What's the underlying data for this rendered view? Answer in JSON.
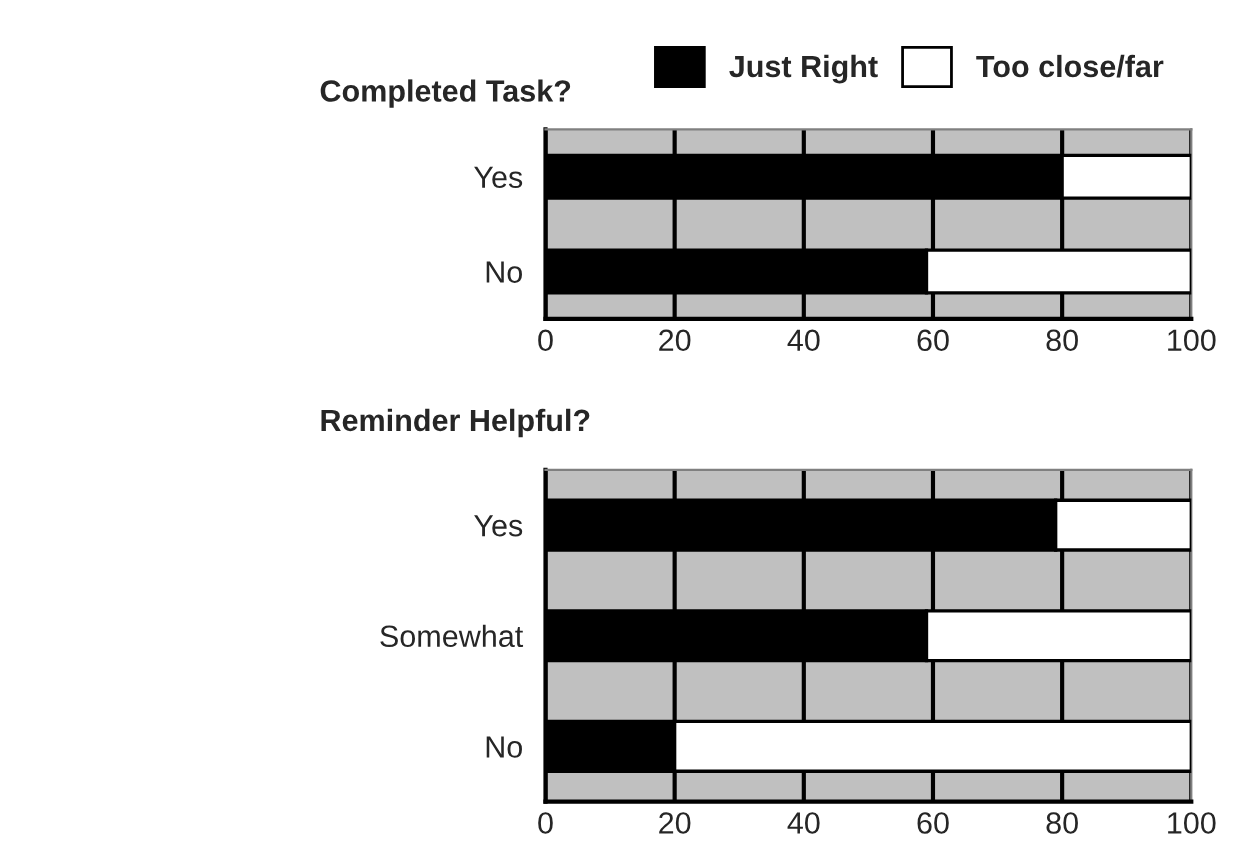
{
  "chart_data": [
    {
      "type": "bar",
      "orientation": "horizontal",
      "stacked": true,
      "title": "Completed Task?",
      "categories": [
        "Yes",
        "No"
      ],
      "series": [
        {
          "name": "Just Right",
          "color": "#000000",
          "values": [
            80,
            59
          ]
        },
        {
          "name": "Too close/far",
          "color": "#ffffff",
          "values": [
            20,
            41
          ]
        }
      ],
      "xlim": [
        0,
        100
      ],
      "xticks": [
        0,
        20,
        40,
        60,
        80,
        100
      ],
      "grid": "x",
      "legend": "top right"
    },
    {
      "type": "bar",
      "orientation": "horizontal",
      "stacked": true,
      "title": "Reminder Helpful?",
      "categories": [
        "Yes",
        "Somewhat",
        "No"
      ],
      "series": [
        {
          "color": "#000000",
          "values": [
            79,
            59,
            20
          ]
        },
        {
          "color": "#ffffff",
          "values": [
            21,
            41,
            80
          ]
        }
      ],
      "xlim": [
        0,
        100
      ],
      "xticks": [
        0,
        20,
        40,
        60,
        80,
        100
      ],
      "grid": "x"
    }
  ]
}
